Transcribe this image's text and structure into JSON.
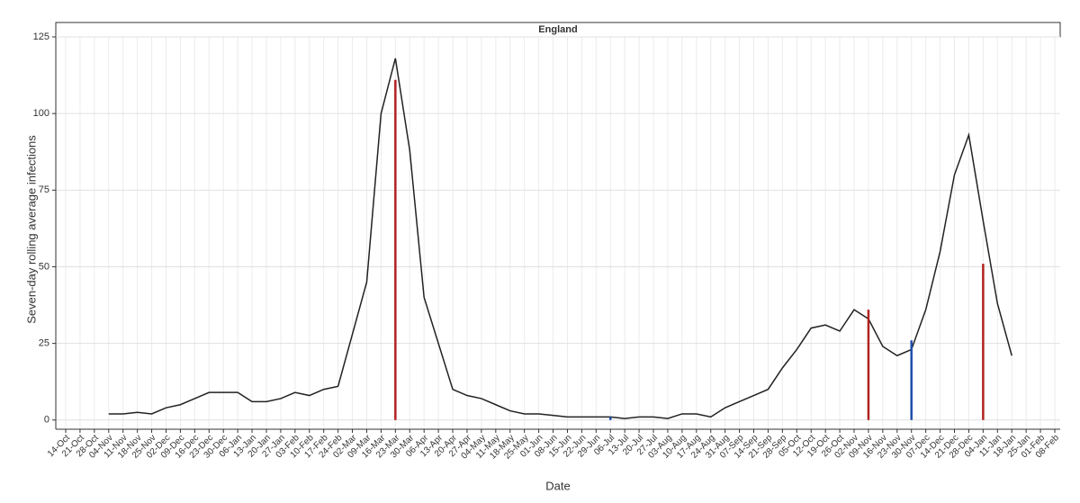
{
  "chart_data": {
    "type": "line",
    "strip": "England",
    "x_label": "Date",
    "y_label": "Seven-day rolling average infections",
    "categories": [
      "14-Oct",
      "21-Oct",
      "28-Oct",
      "04-Nov",
      "11-Nov",
      "18-Nov",
      "25-Nov",
      "02-Dec",
      "09-Dec",
      "16-Dec",
      "23-Dec",
      "30-Dec",
      "06-Jan",
      "13-Jan",
      "20-Jan",
      "27-Jan",
      "03-Feb",
      "10-Feb",
      "17-Feb",
      "24-Feb",
      "02-Mar",
      "09-Mar",
      "16-Mar",
      "23-Mar",
      "30-Mar",
      "06-Apr",
      "13-Apr",
      "20-Apr",
      "27-Apr",
      "04-May",
      "11-May",
      "18-May",
      "25-May",
      "01-Jun",
      "08-Jun",
      "15-Jun",
      "22-Jun",
      "29-Jun",
      "06-Jul",
      "13-Jul",
      "20-Jul",
      "27-Jul",
      "03-Aug",
      "10-Aug",
      "17-Aug",
      "24-Aug",
      "31-Aug",
      "07-Sep",
      "14-Sep",
      "21-Sep",
      "28-Sep",
      "05-Oct",
      "12-Oct",
      "19-Oct",
      "26-Oct",
      "02-Nov",
      "09-Nov",
      "16-Nov",
      "23-Nov",
      "30-Nov",
      "07-Dec",
      "14-Dec",
      "21-Dec",
      "28-Dec",
      "04-Jan",
      "11-Jan",
      "18-Jan",
      "25-Jan",
      "01-Feb",
      "08-Feb"
    ],
    "values": [
      null,
      null,
      null,
      2,
      2,
      2.5,
      2,
      4,
      5,
      7,
      9,
      9,
      9,
      6,
      6,
      7,
      9,
      8,
      10,
      11,
      28,
      45,
      100,
      118,
      88,
      40,
      25,
      10,
      8,
      7,
      5,
      3,
      2,
      2,
      1.5,
      1,
      1,
      1,
      1,
      0.5,
      1,
      1,
      0.5,
      2,
      2,
      1,
      4,
      6,
      8,
      10,
      17,
      23,
      30,
      31,
      29,
      36,
      33,
      24,
      21,
      23,
      36,
      55,
      80,
      93,
      65,
      38,
      21,
      null,
      null,
      null
    ],
    "color": "#222222",
    "events": [
      {
        "x": "23-Mar",
        "value": 111,
        "color": "#b22222"
      },
      {
        "x": "06-Jul",
        "value": 1,
        "color": "#1f4fa8"
      },
      {
        "x": "09-Nov",
        "value": 36,
        "color": "#b22222"
      },
      {
        "x": "30-Nov",
        "value": 26,
        "color": "#1f4fa8"
      },
      {
        "x": "04-Jan",
        "value": 51,
        "color": "#b22222"
      }
    ],
    "ylim": [
      -3,
      125
    ],
    "yticks": [
      0,
      25,
      50,
      75,
      100,
      125
    ],
    "grid": true
  }
}
